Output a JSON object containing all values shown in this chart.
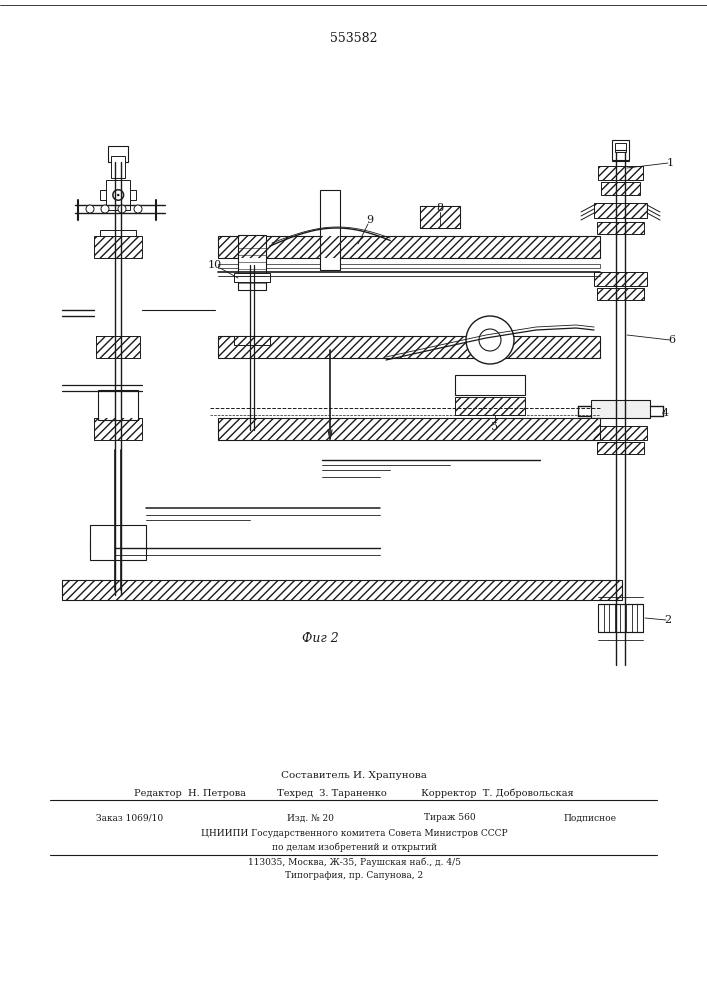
{
  "patent_number": "553582",
  "fig_label": "Фиг 2",
  "bg_color": "#ffffff",
  "line_color": "#1a1a1a",
  "footer": {
    "composer": "Составитель И. Храпунова",
    "editor": "Редактор  Н. Петрова",
    "techred": "Техред  З. Тараненко",
    "corrector": "Корректор  Т. Добровольская",
    "order": "Заказ 1069/10",
    "izd": "Изд. № 20",
    "tirazh": "Тираж 560",
    "podpisnoe": "Подписное",
    "org1": "ЦНИИПИ Государственного комитета Совета Министров СССР",
    "org2": "по делам изобретений и открытий",
    "addr": "113035, Москва, Ж-35, Раушская наб., д. 4/5",
    "print": "Типография, пр. Сапунова, 2"
  }
}
